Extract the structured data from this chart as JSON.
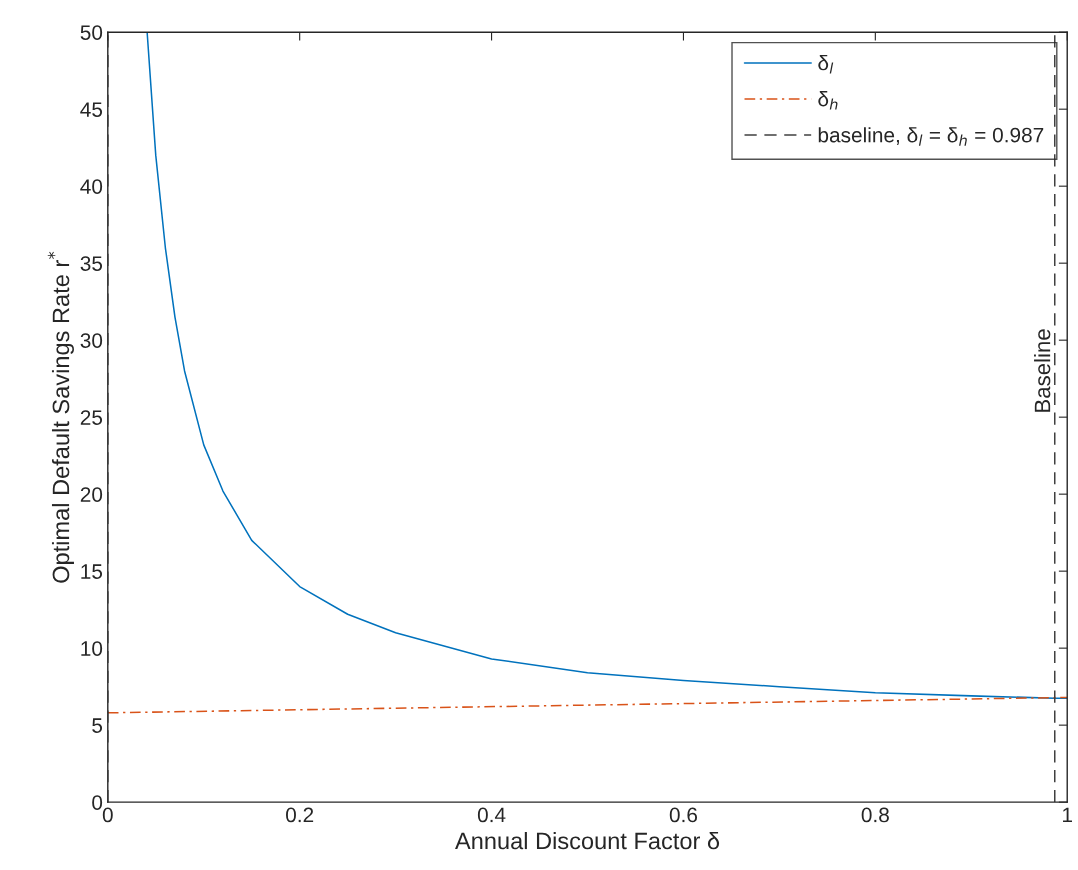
{
  "chart_data": {
    "type": "line",
    "xlabel": "Annual Discount Factor δ",
    "ylabel": "Optimal Default Savings Rate r$^{*}$",
    "xlim": [
      0,
      1
    ],
    "ylim": [
      0,
      50
    ],
    "xticks": [
      0,
      0.2,
      0.4,
      0.6,
      0.8,
      1
    ],
    "yticks": [
      0,
      5,
      10,
      15,
      20,
      25,
      30,
      35,
      40,
      45,
      50
    ],
    "grid": false,
    "legend": "top right",
    "series": [
      {
        "name": "δ$_{l}$",
        "color": "#0072bd",
        "line_style": "solid",
        "x": [
          0.041,
          0.05,
          0.06,
          0.07,
          0.08,
          0.1,
          0.12,
          0.15,
          0.2,
          0.25,
          0.3,
          0.4,
          0.5,
          0.6,
          0.7,
          0.8,
          0.9,
          0.987,
          1.0
        ],
        "values": [
          50,
          42,
          36,
          31.5,
          28,
          23.2,
          20.2,
          17,
          14,
          12.2,
          11,
          9.3,
          8.4,
          7.9,
          7.5,
          7.1,
          6.9,
          6.75,
          6.75
        ]
      },
      {
        "name": "δ$_{h}$",
        "color": "#d95319",
        "line_style": "dashdot",
        "x": [
          0,
          1
        ],
        "values": [
          5.8,
          6.8
        ]
      },
      {
        "name": "baseline, δ$_{l}$ = δ$_{h}$ = 0.987",
        "color": "#404040",
        "line_style": "dashed",
        "x": [
          0.987,
          0.987
        ],
        "values": [
          0,
          50
        ]
      }
    ],
    "ref_lines": [
      {
        "axis": "x",
        "value": 0,
        "color": "#404040",
        "line_style": "dashed"
      }
    ],
    "annotations": [
      {
        "text": "Baseline",
        "x": 0.987,
        "y": 28
      }
    ]
  }
}
